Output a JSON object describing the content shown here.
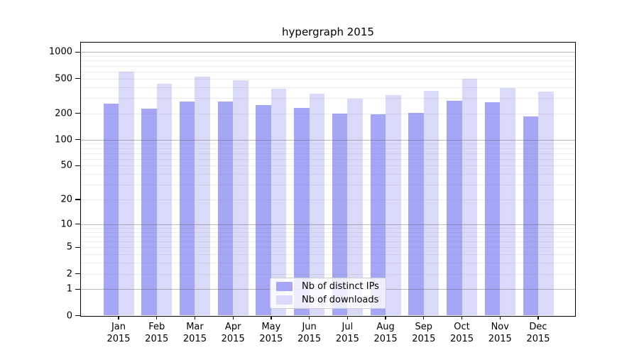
{
  "chart_data": {
    "type": "bar",
    "title": "hypergraph 2015",
    "categories": [
      {
        "month": "Jan",
        "year": "2015"
      },
      {
        "month": "Feb",
        "year": "2015"
      },
      {
        "month": "Mar",
        "year": "2015"
      },
      {
        "month": "Apr",
        "year": "2015"
      },
      {
        "month": "May",
        "year": "2015"
      },
      {
        "month": "Jun",
        "year": "2015"
      },
      {
        "month": "Jul",
        "year": "2015"
      },
      {
        "month": "Aug",
        "year": "2015"
      },
      {
        "month": "Sep",
        "year": "2015"
      },
      {
        "month": "Oct",
        "year": "2015"
      },
      {
        "month": "Nov",
        "year": "2015"
      },
      {
        "month": "Dec",
        "year": "2015"
      }
    ],
    "series": [
      {
        "name": "Nb of distinct IPs",
        "color": "#a6a6f7",
        "values": [
          260,
          225,
          274,
          271,
          247,
          229,
          198,
          196,
          204,
          276,
          268,
          186
        ]
      },
      {
        "name": "Nb of downloads",
        "color": "#d9d9f9",
        "values": [
          600,
          432,
          523,
          475,
          380,
          333,
          293,
          321,
          360,
          494,
          388,
          352
        ]
      }
    ],
    "y_axis": {
      "scale": "log1p",
      "ticks": [
        0,
        1,
        2,
        5,
        10,
        20,
        50,
        100,
        200,
        500,
        1000
      ],
      "ylim": [
        0,
        1280
      ],
      "grid": true
    },
    "legend": {
      "position": "lower-center-inside"
    },
    "colors": {
      "major_grid": "#b4b4b4",
      "minor_grid": "#ebebeb",
      "axis": "#000000",
      "background": "#ffffff"
    }
  }
}
